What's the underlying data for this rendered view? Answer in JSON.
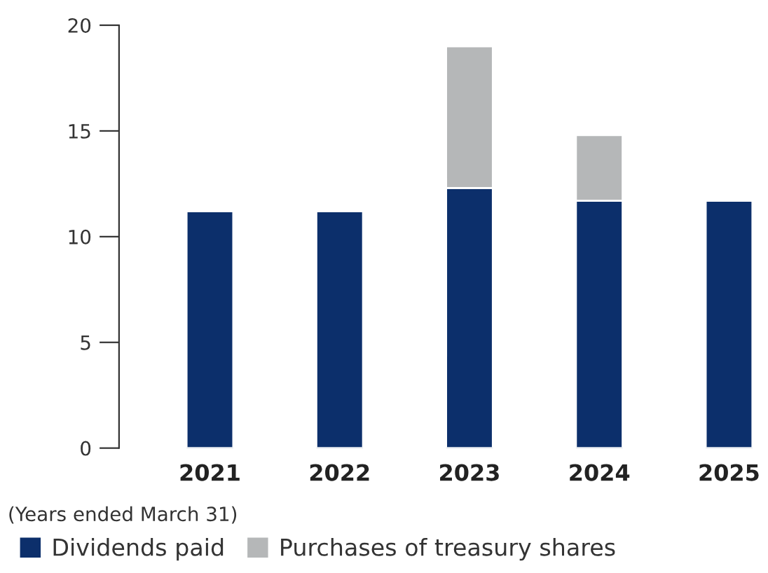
{
  "chart_data": {
    "type": "bar",
    "stacked": true,
    "categories": [
      "2021",
      "2022",
      "2023",
      "2024",
      "2025"
    ],
    "series": [
      {
        "name": "Dividends paid",
        "color": "#0c2f6b",
        "values": [
          11.2,
          11.2,
          12.3,
          11.7,
          11.7
        ]
      },
      {
        "name": "Purchases of treasury shares",
        "color": "#b5b7b8",
        "values": [
          null,
          null,
          6.7,
          3.1,
          null
        ]
      }
    ],
    "ylim": [
      0,
      20
    ],
    "yticks": [
      0,
      5,
      10,
      15,
      20
    ],
    "grid": false,
    "legend": "bottom left",
    "annotations": [
      "(Years ended March 31)"
    ]
  }
}
